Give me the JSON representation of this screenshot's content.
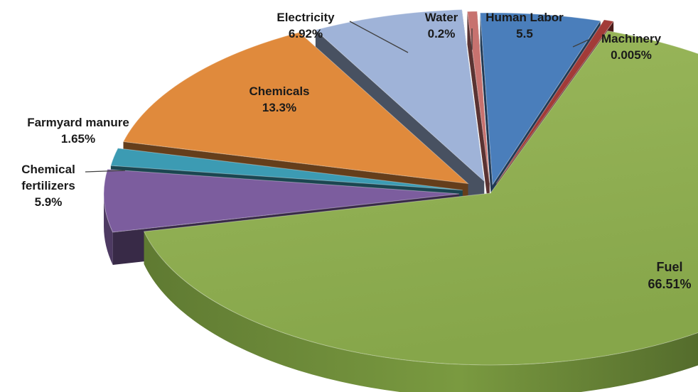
{
  "chart_data": {
    "type": "pie",
    "variant": "3d-exploded",
    "title": "",
    "legend": "none",
    "slices": [
      {
        "name": "Human Labor",
        "value": 5.5,
        "value_label": "5.5",
        "color": "#4a7ebb"
      },
      {
        "name": "Machinery",
        "value": 0.005,
        "value_label": "0.005%",
        "color": "#a23b38"
      },
      {
        "name": "Fuel",
        "value": 66.51,
        "value_label": "66.51%",
        "color": "#8cab4e"
      },
      {
        "name": "Chemical\nfertilizers",
        "value": 5.9,
        "value_label": "5.9%",
        "color": "#7c5d9e"
      },
      {
        "name": "Farmyard manure",
        "value": 1.65,
        "value_label": "1.65%",
        "color": "#3c9bb3"
      },
      {
        "name": "Chemicals",
        "value": 13.3,
        "value_label": "13.3%",
        "color": "#e08a3c"
      },
      {
        "name": "Electricity",
        "value": 6.92,
        "value_label": "6.92%",
        "color": "#9fb3d8"
      },
      {
        "name": "Water",
        "value": 0.2,
        "value_label": "0.2%",
        "color": "#c7726f"
      }
    ]
  }
}
